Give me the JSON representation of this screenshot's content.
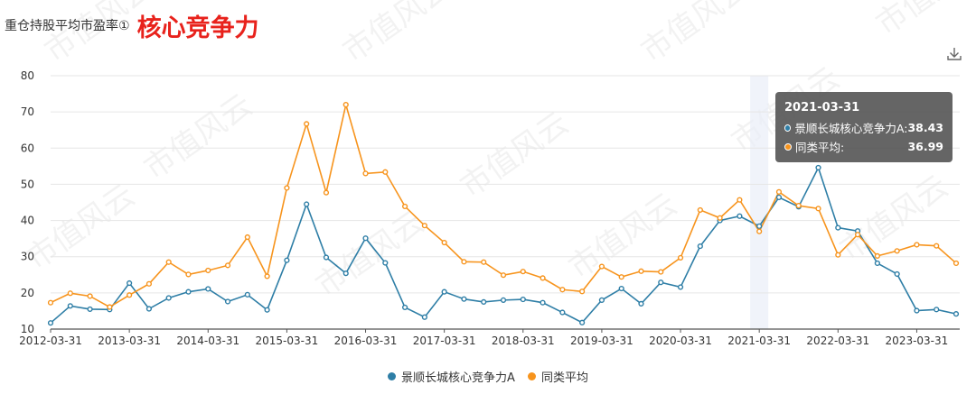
{
  "header": {
    "label": "重仓持股平均市盈率①",
    "title": "核心竞争力"
  },
  "watermark": "市值风云",
  "tooltip": {
    "date": "2021-03-31",
    "rows": [
      {
        "name": "景顺长城核心竞争力A:",
        "value": "38.43",
        "color": "#2e7ea6"
      },
      {
        "name": "同类平均:",
        "value": "36.99",
        "color": "#f7941d"
      }
    ]
  },
  "chart_data": {
    "type": "line",
    "x": [
      "2012-03-31",
      "2012-06-30",
      "2012-09-30",
      "2012-12-31",
      "2013-03-31",
      "2013-06-30",
      "2013-09-30",
      "2013-12-31",
      "2014-03-31",
      "2014-06-30",
      "2014-09-30",
      "2014-12-31",
      "2015-03-31",
      "2015-06-30",
      "2015-09-30",
      "2015-12-31",
      "2016-03-31",
      "2016-06-30",
      "2016-09-30",
      "2016-12-31",
      "2017-03-31",
      "2017-06-30",
      "2017-09-30",
      "2017-12-31",
      "2018-03-31",
      "2018-06-30",
      "2018-09-30",
      "2018-12-31",
      "2019-03-31",
      "2019-06-30",
      "2019-09-30",
      "2019-12-31",
      "2020-03-31",
      "2020-06-30",
      "2020-09-30",
      "2020-12-31",
      "2021-03-31",
      "2021-06-30",
      "2021-09-30",
      "2021-12-31",
      "2022-03-31",
      "2022-06-30",
      "2022-09-30",
      "2022-12-31",
      "2023-03-31",
      "2023-06-30",
      "2023-09-30"
    ],
    "x_tick_labels": [
      "2012-03-31",
      "2013-03-31",
      "2014-03-31",
      "2015-03-31",
      "2016-03-31",
      "2017-03-31",
      "2018-03-31",
      "2019-03-31",
      "2020-03-31",
      "2021-03-31",
      "2022-03-31",
      "2023-03-31"
    ],
    "ylim": [
      10,
      80
    ],
    "y_ticks": [
      10,
      20,
      30,
      40,
      50,
      60,
      70,
      80
    ],
    "grid": true,
    "legend_position": "bottom",
    "highlight_index": 36,
    "series": [
      {
        "name": "景顺长城核心竞争力A",
        "color": "#2e7ea6",
        "values": [
          11.7,
          16.4,
          15.5,
          15.4,
          22.7,
          15.6,
          18.6,
          20.3,
          21.1,
          17.6,
          19.5,
          15.3,
          29.0,
          44.5,
          29.8,
          25.4,
          35.1,
          28.3,
          16.0,
          13.3,
          20.3,
          18.3,
          17.5,
          18.0,
          18.2,
          17.3,
          14.6,
          11.8,
          18.0,
          21.2,
          17.0,
          22.9,
          21.6,
          32.9,
          40.0,
          41.2,
          38.43,
          46.4,
          43.8,
          54.6,
          38.0,
          37.1,
          28.2,
          25.2,
          15.1,
          15.4,
          14.2
        ]
      },
      {
        "name": "同类平均",
        "color": "#f7941d",
        "values": [
          17.3,
          19.9,
          19.1,
          16.1,
          19.4,
          22.5,
          28.5,
          25.1,
          26.2,
          27.6,
          35.4,
          24.6,
          49.0,
          66.7,
          47.7,
          72.0,
          53.0,
          53.4,
          43.9,
          38.6,
          33.9,
          28.6,
          28.5,
          24.9,
          25.9,
          24.1,
          20.9,
          20.4,
          27.3,
          24.4,
          26.0,
          25.8,
          29.7,
          42.9,
          40.7,
          45.7,
          36.99,
          47.9,
          44.1,
          43.3,
          30.5,
          36.1,
          30.2,
          31.6,
          33.3,
          33.0,
          28.2
        ]
      }
    ]
  }
}
